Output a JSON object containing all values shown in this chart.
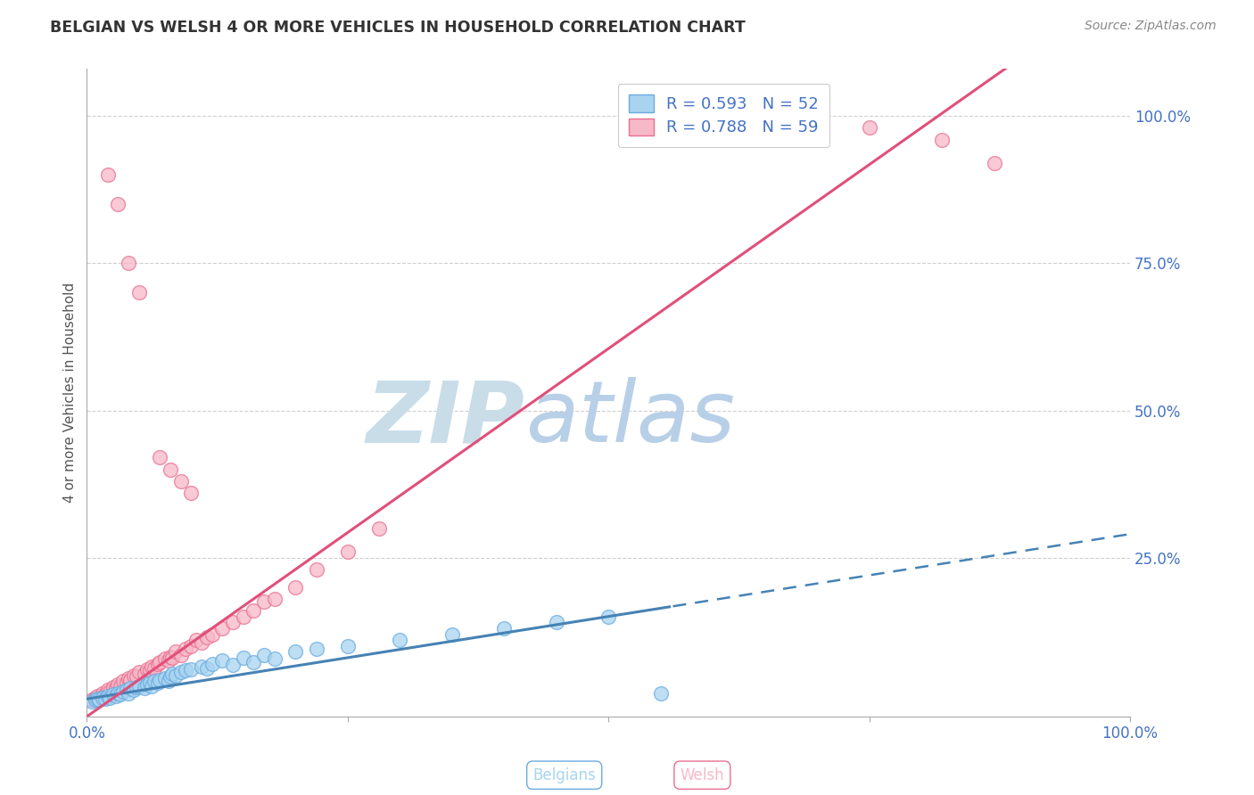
{
  "title": "BELGIAN VS WELSH 4 OR MORE VEHICLES IN HOUSEHOLD CORRELATION CHART",
  "source": "Source: ZipAtlas.com",
  "ylabel": "4 or more Vehicles in Household",
  "xlim": [
    0.0,
    1.0
  ],
  "ylim": [
    -0.02,
    1.08
  ],
  "ytick_labels": [
    "25.0%",
    "50.0%",
    "75.0%",
    "100.0%"
  ],
  "ytick_values": [
    0.25,
    0.5,
    0.75,
    1.0
  ],
  "belgian_color": "#a8d4f0",
  "welsh_color": "#f7b8c8",
  "belgian_edge": "#6aabe0",
  "welsh_edge": "#e87090",
  "regression_belgian_color": "#4682b4",
  "regression_welsh_color": "#e0507a",
  "belgian_R": "0.593",
  "belgian_N": "52",
  "welsh_R": "0.788",
  "welsh_N": "59",
  "watermark_zip": "ZIP",
  "watermark_atlas": "atlas",
  "watermark_color_zip": "#c8dde8",
  "watermark_color_atlas": "#b8cfe8",
  "legend_text_color": "#4472c4",
  "grid_color": "#d0d0d0",
  "title_color": "#333333",
  "belgian_scatter": [
    [
      0.005,
      0.005
    ],
    [
      0.008,
      0.008
    ],
    [
      0.01,
      0.01
    ],
    [
      0.012,
      0.008
    ],
    [
      0.015,
      0.012
    ],
    [
      0.018,
      0.01
    ],
    [
      0.02,
      0.015
    ],
    [
      0.022,
      0.012
    ],
    [
      0.025,
      0.018
    ],
    [
      0.028,
      0.015
    ],
    [
      0.03,
      0.02
    ],
    [
      0.032,
      0.018
    ],
    [
      0.035,
      0.022
    ],
    [
      0.038,
      0.025
    ],
    [
      0.04,
      0.02
    ],
    [
      0.042,
      0.028
    ],
    [
      0.045,
      0.025
    ],
    [
      0.048,
      0.03
    ],
    [
      0.05,
      0.032
    ],
    [
      0.055,
      0.028
    ],
    [
      0.058,
      0.035
    ],
    [
      0.06,
      0.038
    ],
    [
      0.062,
      0.032
    ],
    [
      0.065,
      0.04
    ],
    [
      0.068,
      0.038
    ],
    [
      0.07,
      0.042
    ],
    [
      0.075,
      0.045
    ],
    [
      0.078,
      0.04
    ],
    [
      0.08,
      0.048
    ],
    [
      0.082,
      0.052
    ],
    [
      0.085,
      0.05
    ],
    [
      0.09,
      0.055
    ],
    [
      0.095,
      0.058
    ],
    [
      0.1,
      0.06
    ],
    [
      0.11,
      0.065
    ],
    [
      0.115,
      0.062
    ],
    [
      0.12,
      0.07
    ],
    [
      0.13,
      0.075
    ],
    [
      0.14,
      0.068
    ],
    [
      0.15,
      0.08
    ],
    [
      0.16,
      0.072
    ],
    [
      0.17,
      0.085
    ],
    [
      0.18,
      0.078
    ],
    [
      0.2,
      0.09
    ],
    [
      0.22,
      0.095
    ],
    [
      0.25,
      0.1
    ],
    [
      0.3,
      0.11
    ],
    [
      0.35,
      0.12
    ],
    [
      0.4,
      0.13
    ],
    [
      0.45,
      0.14
    ],
    [
      0.5,
      0.15
    ],
    [
      0.55,
      0.02
    ]
  ],
  "welsh_scatter": [
    [
      0.005,
      0.008
    ],
    [
      0.008,
      0.012
    ],
    [
      0.01,
      0.015
    ],
    [
      0.012,
      0.01
    ],
    [
      0.015,
      0.02
    ],
    [
      0.018,
      0.018
    ],
    [
      0.02,
      0.025
    ],
    [
      0.022,
      0.022
    ],
    [
      0.025,
      0.03
    ],
    [
      0.028,
      0.028
    ],
    [
      0.03,
      0.035
    ],
    [
      0.032,
      0.032
    ],
    [
      0.035,
      0.04
    ],
    [
      0.038,
      0.038
    ],
    [
      0.04,
      0.045
    ],
    [
      0.042,
      0.042
    ],
    [
      0.045,
      0.05
    ],
    [
      0.048,
      0.048
    ],
    [
      0.05,
      0.055
    ],
    [
      0.055,
      0.052
    ],
    [
      0.058,
      0.06
    ],
    [
      0.06,
      0.058
    ],
    [
      0.062,
      0.065
    ],
    [
      0.065,
      0.062
    ],
    [
      0.068,
      0.07
    ],
    [
      0.07,
      0.072
    ],
    [
      0.075,
      0.078
    ],
    [
      0.078,
      0.075
    ],
    [
      0.08,
      0.082
    ],
    [
      0.082,
      0.08
    ],
    [
      0.085,
      0.09
    ],
    [
      0.09,
      0.085
    ],
    [
      0.095,
      0.095
    ],
    [
      0.1,
      0.1
    ],
    [
      0.105,
      0.11
    ],
    [
      0.11,
      0.105
    ],
    [
      0.115,
      0.115
    ],
    [
      0.12,
      0.12
    ],
    [
      0.13,
      0.13
    ],
    [
      0.14,
      0.14
    ],
    [
      0.15,
      0.15
    ],
    [
      0.16,
      0.16
    ],
    [
      0.17,
      0.175
    ],
    [
      0.18,
      0.18
    ],
    [
      0.2,
      0.2
    ],
    [
      0.22,
      0.23
    ],
    [
      0.25,
      0.26
    ],
    [
      0.28,
      0.3
    ],
    [
      0.07,
      0.42
    ],
    [
      0.08,
      0.4
    ],
    [
      0.09,
      0.38
    ],
    [
      0.1,
      0.36
    ],
    [
      0.02,
      0.9
    ],
    [
      0.03,
      0.85
    ],
    [
      0.04,
      0.75
    ],
    [
      0.05,
      0.7
    ],
    [
      0.75,
      0.98
    ],
    [
      0.82,
      0.96
    ],
    [
      0.87,
      0.92
    ]
  ]
}
